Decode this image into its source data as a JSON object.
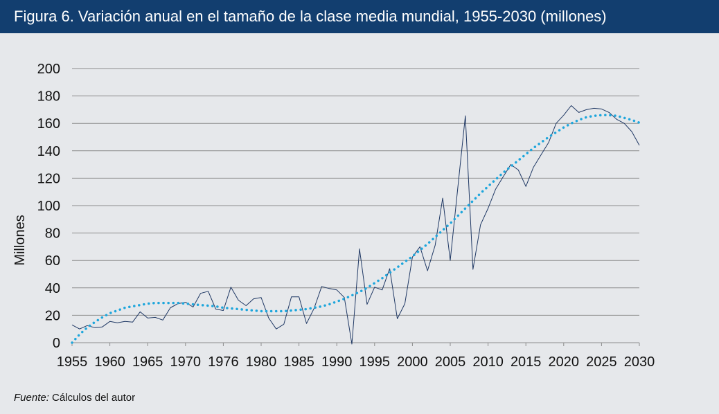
{
  "header": {
    "title": "Figura 6. Variación anual en el tamaño de la clase media mundial, 1955-2030 (millones)"
  },
  "source": {
    "label": "Fuente:",
    "text": " Cálculos del autor"
  },
  "colors": {
    "header_bg": "#123e6f",
    "series_line": "#1f3864",
    "trend_line": "#1ea6dc",
    "gridline": "#8c8c8c",
    "background": "#e6e8eb"
  },
  "chart_data": {
    "type": "line",
    "title": "",
    "ylabel": "Millones",
    "xlabel": "",
    "ylim": [
      0,
      200
    ],
    "xlim": [
      1955,
      2030
    ],
    "y_ticks": [
      0,
      20,
      40,
      60,
      80,
      100,
      120,
      140,
      160,
      180,
      200
    ],
    "x_tick_labels": [
      "1955",
      "1960",
      "1965",
      "1970",
      "1976",
      "1980",
      "1985",
      "1990",
      "1995",
      "2000",
      "2005",
      "2010",
      "2015",
      "2020",
      "2025",
      "2030"
    ],
    "grid": true,
    "series": [
      {
        "style": "solid-thin",
        "x": [
          1955,
          1956,
          1957,
          1958,
          1959,
          1960,
          1961,
          1962,
          1963,
          1964,
          1965,
          1966,
          1967,
          1968,
          1969,
          1970,
          1971,
          1972,
          1973,
          1974,
          1975,
          1976,
          1977,
          1978,
          1979,
          1980,
          1981,
          1982,
          1983,
          1984,
          1985,
          1986,
          1987,
          1988,
          1989,
          1990,
          1991,
          1992,
          1993,
          1994,
          1995,
          1996,
          1997,
          1998,
          1999,
          2000,
          2001,
          2002,
          2003,
          2004,
          2005,
          2006,
          2007,
          2008,
          2009,
          2010,
          2011,
          2012,
          2013,
          2014,
          2015,
          2016,
          2017,
          2018,
          2019,
          2020,
          2021,
          2022,
          2023,
          2024,
          2025,
          2026,
          2027,
          2028,
          2029,
          2030
        ],
        "values": [
          13,
          10,
          12.5,
          11,
          11.5,
          15.5,
          14.5,
          15.5,
          15,
          22.5,
          18,
          18.5,
          16.5,
          25.5,
          28.5,
          29.5,
          26,
          36,
          37.5,
          24.5,
          23.5,
          40.5,
          31,
          27,
          32,
          33,
          18,
          10,
          13.5,
          33.5,
          33.5,
          14,
          25,
          41,
          39.5,
          38.5,
          33,
          -1,
          68.5,
          28,
          40.5,
          38.5,
          54,
          17.5,
          28.5,
          62.5,
          70,
          52.5,
          71,
          105.5,
          60,
          113,
          165.5,
          53.5,
          86,
          98,
          112,
          121,
          130,
          126,
          114,
          128,
          137,
          146,
          160,
          166,
          173,
          168,
          170,
          171,
          170.5,
          168,
          163,
          160,
          154,
          144
        ]
      },
      {
        "style": "dotted-trend",
        "x": [
          1955,
          1956,
          1957,
          1958,
          1959,
          1960,
          1961,
          1962,
          1963,
          1964,
          1965,
          1966,
          1967,
          1968,
          1969,
          1970,
          1971,
          1972,
          1973,
          1974,
          1975,
          1976,
          1977,
          1978,
          1979,
          1980,
          1981,
          1982,
          1983,
          1984,
          1985,
          1986,
          1987,
          1988,
          1989,
          1990,
          1991,
          1992,
          1993,
          1994,
          1995,
          1996,
          1997,
          1998,
          1999,
          2000,
          2001,
          2002,
          2003,
          2004,
          2005,
          2006,
          2007,
          2008,
          2009,
          2010,
          2011,
          2012,
          2013,
          2014,
          2015,
          2016,
          2017,
          2018,
          2019,
          2020,
          2021,
          2022,
          2023,
          2024,
          2025,
          2026,
          2027,
          2028,
          2029,
          2030
        ],
        "values": [
          0,
          6,
          11,
          15,
          18.5,
          21.5,
          23.5,
          25.5,
          26.5,
          27.5,
          28.5,
          29,
          29,
          29,
          29,
          28.5,
          28,
          27.5,
          27,
          26.5,
          25.5,
          25,
          24.5,
          24,
          23.5,
          23,
          23,
          23,
          23,
          23.5,
          24,
          24.5,
          25.5,
          26.5,
          28,
          30,
          32,
          34.5,
          37,
          40,
          43.5,
          47,
          51,
          55,
          59,
          63,
          67.5,
          72,
          77,
          82,
          87,
          92.5,
          98,
          103.5,
          109,
          114,
          119,
          124,
          128.5,
          133,
          137.5,
          142,
          146,
          150,
          153.5,
          157,
          160,
          162.5,
          164.5,
          165.5,
          166,
          166,
          165.5,
          164,
          162.5,
          160.5
        ]
      }
    ]
  }
}
